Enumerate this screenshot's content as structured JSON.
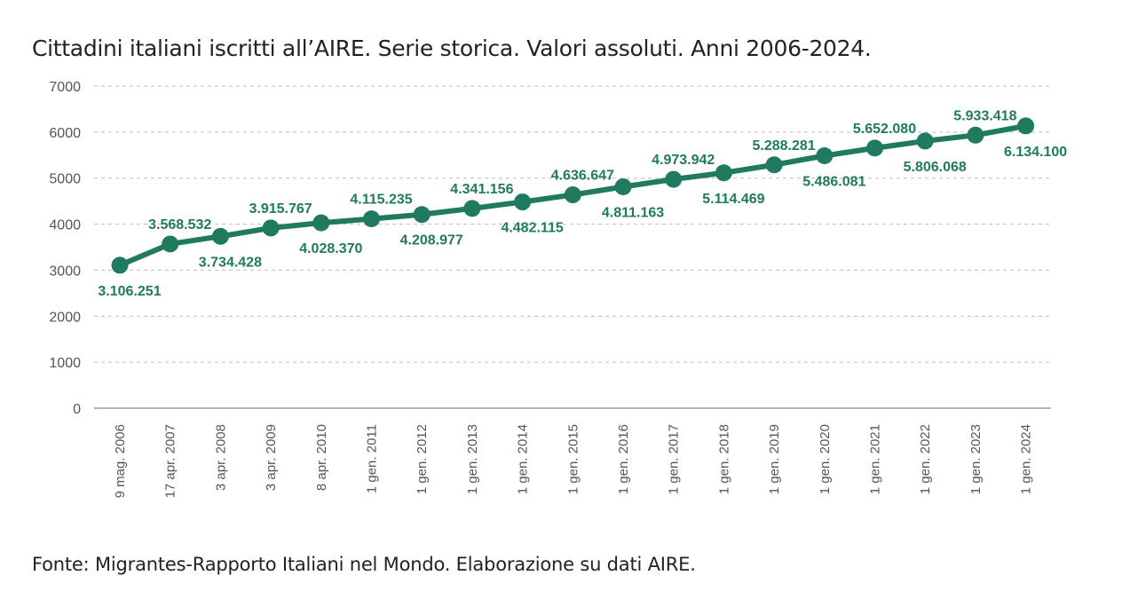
{
  "chart_data": {
    "type": "line",
    "title": "Cittadini italiani iscritti all’AIRE. Serie storica. Valori assoluti. Anni 2006-2024.",
    "source": "Fonte: Migrantes-Rapporto Italiani nel Mondo. Elaborazione su dati AIRE.",
    "xlabel": "",
    "ylabel": "",
    "ylim": [
      0,
      7000
    ],
    "yticks": [
      "0",
      "1000",
      "2000",
      "3000",
      "4000",
      "5000",
      "6000",
      "7000"
    ],
    "grid": true,
    "legend": "none",
    "color": "#1f7a5f",
    "categories": [
      "9 mag. 2006",
      "17 apr. 2007",
      "3 apr. 2008",
      "3 apr. 2009",
      "8 apr. 2010",
      "1 gen. 2011",
      "1 gen. 2012",
      "1 gen. 2013",
      "1 gen. 2014",
      "1 gen. 2015",
      "1 gen. 2016",
      "1 gen. 2017",
      "1 gen. 2018",
      "1 gen. 2019",
      "1 gen. 2020",
      "1 gen. 2021",
      "1 gen. 2022",
      "1 gen. 2023",
      "1 gen. 2024"
    ],
    "values": [
      3106.251,
      3568.532,
      3734.428,
      3915.767,
      4028.37,
      4115.235,
      4208.977,
      4341.156,
      4482.115,
      4636.647,
      4811.163,
      4973.942,
      5114.469,
      5288.281,
      5486.081,
      5652.08,
      5806.068,
      5933.418,
      6134.1
    ],
    "data_labels": [
      "3.106.251",
      "3.568.532",
      "3.734.428",
      "3.915.767",
      "4.028.370",
      "4.115.235",
      "4.208.977",
      "4.341.156",
      "4.482.115",
      "4.636.647",
      "4.811.163",
      "4.973.942",
      "5.114.469",
      "5.288.281",
      "5.486.081",
      "5.652.080",
      "5.806.068",
      "5.933.418",
      "6.134.100"
    ]
  }
}
